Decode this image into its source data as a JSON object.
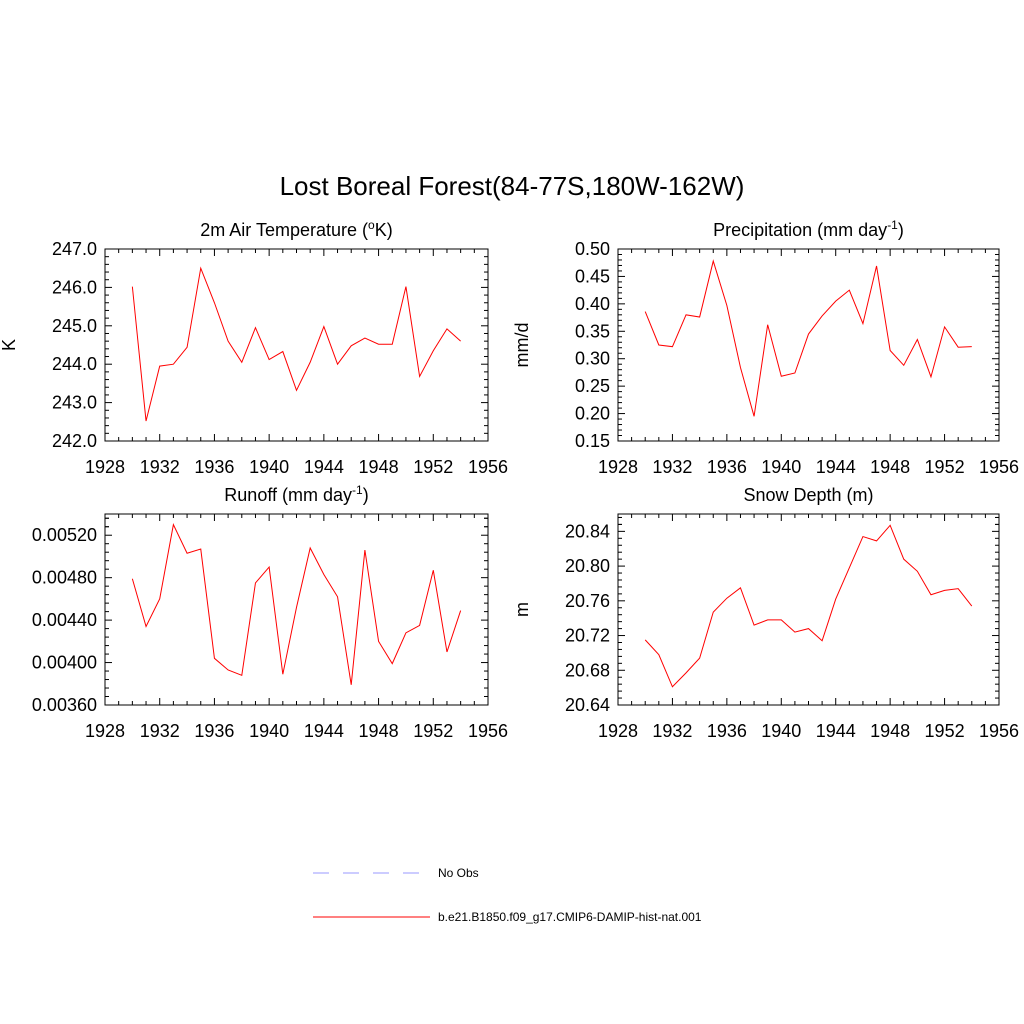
{
  "title": "Lost Boreal Forest(84-77S,180W-162W)",
  "legend": [
    {
      "label": "No Obs",
      "color": "#9999ff",
      "dash": true
    },
    {
      "label": "b.e21.B1850.f09_g17.CMIP6-DAMIP-hist-nat.001",
      "color": "#ff0000",
      "dash": false
    }
  ],
  "chart_data": [
    {
      "type": "line",
      "title": "2m Air Temperature (",
      "title_sup": "o",
      "title_after": "K)",
      "ylabel": "K",
      "xlim": [
        1928,
        1956
      ],
      "ylim": [
        242.0,
        247.0
      ],
      "xticks": [
        1928,
        1932,
        1936,
        1940,
        1944,
        1948,
        1952,
        1956
      ],
      "yticks": [
        242.0,
        243.0,
        244.0,
        245.0,
        246.0,
        247.0
      ],
      "ytick_labels": [
        "242.0",
        "243.0",
        "244.0",
        "245.0",
        "246.0",
        "247.0"
      ],
      "x": [
        1930,
        1931,
        1932,
        1933,
        1934,
        1935,
        1936,
        1937,
        1938,
        1939,
        1940,
        1941,
        1942,
        1943,
        1944,
        1945,
        1946,
        1947,
        1948,
        1949,
        1950,
        1951,
        1952,
        1953,
        1954
      ],
      "series": [
        {
          "color": "#ff0000",
          "values": [
            246.02,
            242.52,
            243.95,
            244.0,
            244.44,
            246.5,
            245.6,
            244.6,
            244.05,
            244.95,
            244.12,
            244.33,
            243.32,
            244.05,
            244.98,
            244.0,
            244.48,
            244.68,
            244.52,
            244.52,
            246.02,
            243.68,
            244.35,
            244.92,
            244.6
          ]
        }
      ]
    },
    {
      "type": "line",
      "title": "Precipitation (mm day",
      "title_sup": "-1",
      "title_after": ")",
      "ylabel": "mm/d",
      "xlim": [
        1928,
        1956
      ],
      "ylim": [
        0.15,
        0.5
      ],
      "xticks": [
        1928,
        1932,
        1936,
        1940,
        1944,
        1948,
        1952,
        1956
      ],
      "yticks": [
        0.15,
        0.2,
        0.25,
        0.3,
        0.35,
        0.4,
        0.45,
        0.5
      ],
      "ytick_labels": [
        "0.15",
        "0.20",
        "0.25",
        "0.30",
        "0.35",
        "0.40",
        "0.45",
        "0.50"
      ],
      "x": [
        1930,
        1931,
        1932,
        1933,
        1934,
        1935,
        1936,
        1937,
        1938,
        1939,
        1940,
        1941,
        1942,
        1943,
        1944,
        1945,
        1946,
        1947,
        1948,
        1949,
        1950,
        1951,
        1952,
        1953,
        1954
      ],
      "series": [
        {
          "color": "#ff0000",
          "values": [
            0.386,
            0.325,
            0.322,
            0.38,
            0.376,
            0.478,
            0.397,
            0.284,
            0.195,
            0.362,
            0.268,
            0.274,
            0.345,
            0.378,
            0.405,
            0.425,
            0.364,
            0.469,
            0.315,
            0.288,
            0.335,
            0.267,
            0.358,
            0.321,
            0.322
          ]
        }
      ]
    },
    {
      "type": "line",
      "title": "Runoff (mm day",
      "title_sup": "-1",
      "title_after": ")",
      "ylabel": "",
      "xlim": [
        1928,
        1956
      ],
      "ylim": [
        0.0036,
        0.0054
      ],
      "xticks": [
        1928,
        1932,
        1936,
        1940,
        1944,
        1948,
        1952,
        1956
      ],
      "yticks": [
        0.0036,
        0.004,
        0.0044,
        0.0048,
        0.0052
      ],
      "ytick_labels": [
        "0.00360",
        "0.00400",
        "0.00440",
        "0.00480",
        "0.00520"
      ],
      "x": [
        1930,
        1931,
        1932,
        1933,
        1934,
        1935,
        1936,
        1937,
        1938,
        1939,
        1940,
        1941,
        1942,
        1943,
        1944,
        1945,
        1946,
        1947,
        1948,
        1949,
        1950,
        1951,
        1952,
        1953,
        1954
      ],
      "series": [
        {
          "color": "#ff0000",
          "values": [
            0.00479,
            0.00434,
            0.0046,
            0.0053,
            0.00503,
            0.00507,
            0.00404,
            0.00393,
            0.00388,
            0.00475,
            0.0049,
            0.00389,
            0.00452,
            0.00508,
            0.00483,
            0.00462,
            0.00379,
            0.00506,
            0.0042,
            0.00399,
            0.00428,
            0.00435,
            0.00487,
            0.0041,
            0.00449
          ]
        }
      ]
    },
    {
      "type": "line",
      "title": "Snow Depth (m)",
      "title_sup": "",
      "title_after": "",
      "ylabel": "m",
      "xlim": [
        1928,
        1956
      ],
      "ylim": [
        20.64,
        20.86
      ],
      "xticks": [
        1928,
        1932,
        1936,
        1940,
        1944,
        1948,
        1952,
        1956
      ],
      "yticks": [
        20.64,
        20.68,
        20.72,
        20.76,
        20.8,
        20.84
      ],
      "ytick_labels": [
        "20.64",
        "20.68",
        "20.72",
        "20.76",
        "20.80",
        "20.84"
      ],
      "x": [
        1930,
        1931,
        1932,
        1933,
        1934,
        1935,
        1936,
        1937,
        1938,
        1939,
        1940,
        1941,
        1942,
        1943,
        1944,
        1945,
        1946,
        1947,
        1948,
        1949,
        1950,
        1951,
        1952,
        1953,
        1954
      ],
      "series": [
        {
          "color": "#ff0000",
          "values": [
            20.715,
            20.698,
            20.661,
            20.677,
            20.694,
            20.747,
            20.763,
            20.775,
            20.732,
            20.738,
            20.738,
            20.724,
            20.728,
            20.714,
            20.762,
            20.798,
            20.834,
            20.829,
            20.847,
            20.808,
            20.794,
            20.767,
            20.772,
            20.774,
            20.754
          ]
        }
      ]
    }
  ]
}
